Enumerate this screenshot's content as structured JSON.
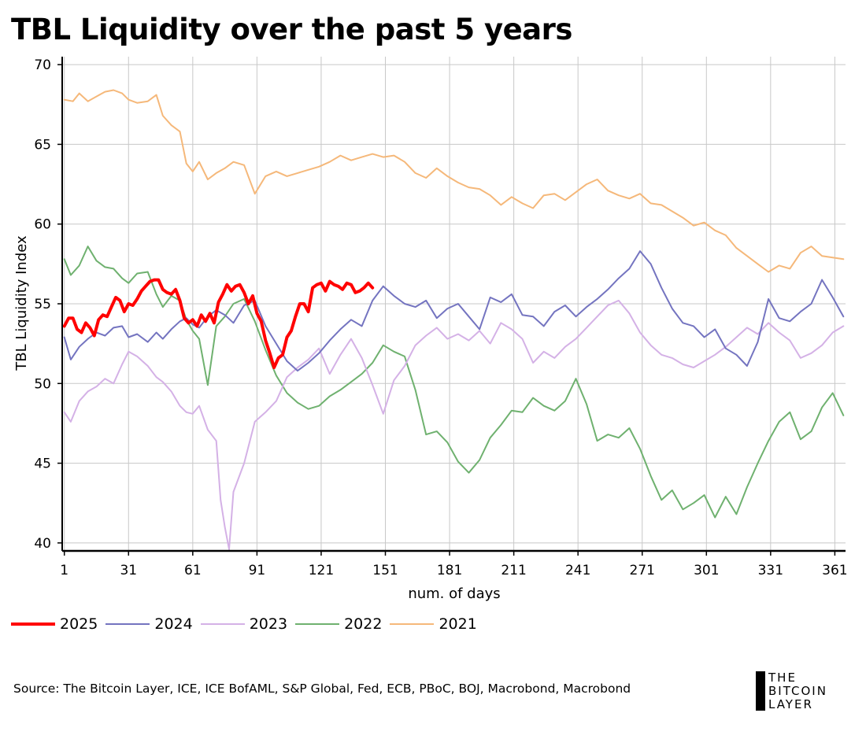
{
  "title": "TBL Liquidity over the past 5 years",
  "source": "Source: The Bitcoin Layer, ICE, ICE BofAML, S&P Global, Fed, ECB, PBoC, BOJ, Macrobond, Macrobond",
  "logo": {
    "line1": "THE",
    "line2": "BITCOIN",
    "line3": "LAYER"
  },
  "chart_data": {
    "type": "line",
    "xlabel": "num. of days",
    "ylabel": "TBL Liquidity Index",
    "xlim": [
      0,
      366
    ],
    "ylim": [
      39.5,
      70.5
    ],
    "x_ticks": [
      1,
      31,
      61,
      91,
      121,
      151,
      181,
      211,
      241,
      271,
      301,
      331,
      361
    ],
    "y_ticks": [
      40,
      45,
      50,
      55,
      60,
      65,
      70
    ],
    "grid": true,
    "legend_position": "bottom-left",
    "series": [
      {
        "name": "2021",
        "color": "#f5b87a",
        "width": 2,
        "x": [
          1,
          5,
          8,
          12,
          16,
          20,
          24,
          28,
          31,
          35,
          40,
          44,
          47,
          51,
          55,
          58,
          61,
          64,
          68,
          72,
          76,
          80,
          85,
          90,
          95,
          100,
          105,
          110,
          115,
          120,
          125,
          130,
          135,
          140,
          145,
          150,
          155,
          160,
          165,
          170,
          175,
          180,
          185,
          190,
          195,
          200,
          205,
          210,
          215,
          220,
          225,
          230,
          235,
          240,
          245,
          250,
          255,
          260,
          265,
          270,
          275,
          280,
          285,
          290,
          295,
          300,
          305,
          310,
          315,
          320,
          325,
          330,
          335,
          340,
          345,
          350,
          355,
          360,
          365
        ],
        "values": [
          67.8,
          67.7,
          68.2,
          67.7,
          68.0,
          68.3,
          68.4,
          68.2,
          67.8,
          67.6,
          67.7,
          68.1,
          66.8,
          66.2,
          65.8,
          63.8,
          63.3,
          63.9,
          62.8,
          63.2,
          63.5,
          63.9,
          63.7,
          61.9,
          63.0,
          63.3,
          63.0,
          63.2,
          63.4,
          63.6,
          63.9,
          64.3,
          64.0,
          64.2,
          64.4,
          64.2,
          64.3,
          63.9,
          63.2,
          62.9,
          63.5,
          63.0,
          62.6,
          62.3,
          62.2,
          61.8,
          61.2,
          61.7,
          61.3,
          61.0,
          61.8,
          61.9,
          61.5,
          62.0,
          62.5,
          62.8,
          62.1,
          61.8,
          61.6,
          61.9,
          61.3,
          61.2,
          60.8,
          60.4,
          59.9,
          60.1,
          59.6,
          59.3,
          58.5,
          58.0,
          57.5,
          57.0,
          57.4,
          57.2,
          58.2,
          58.6,
          58.0,
          57.9,
          57.8
        ]
      },
      {
        "name": "2022",
        "color": "#6fb16f",
        "width": 2,
        "x": [
          1,
          4,
          8,
          12,
          16,
          20,
          24,
          28,
          31,
          35,
          40,
          44,
          47,
          51,
          55,
          58,
          61,
          64,
          68,
          72,
          76,
          80,
          85,
          90,
          95,
          100,
          105,
          110,
          115,
          120,
          125,
          130,
          135,
          140,
          145,
          150,
          155,
          160,
          165,
          170,
          175,
          180,
          185,
          190,
          195,
          200,
          205,
          210,
          215,
          220,
          225,
          230,
          235,
          240,
          245,
          250,
          255,
          260,
          265,
          270,
          275,
          280,
          285,
          290,
          295,
          300,
          305,
          310,
          315,
          320,
          325,
          330,
          335,
          340,
          345,
          350,
          355,
          360,
          365
        ],
        "values": [
          57.8,
          56.8,
          57.4,
          58.6,
          57.7,
          57.3,
          57.2,
          56.6,
          56.3,
          56.9,
          57.0,
          55.6,
          54.8,
          55.5,
          55.2,
          54.0,
          53.3,
          52.8,
          49.9,
          53.6,
          54.2,
          55.0,
          55.3,
          53.9,
          52.1,
          50.5,
          49.4,
          48.8,
          48.4,
          48.6,
          49.2,
          49.6,
          50.1,
          50.6,
          51.3,
          52.4,
          52.0,
          51.7,
          49.6,
          46.8,
          47.0,
          46.3,
          45.1,
          44.4,
          45.2,
          46.6,
          47.4,
          48.3,
          48.2,
          49.1,
          48.6,
          48.3,
          48.9,
          50.3,
          48.7,
          46.4,
          46.8,
          46.6,
          47.2,
          45.9,
          44.2,
          42.7,
          43.3,
          42.1,
          42.5,
          43.0,
          41.6,
          42.9,
          41.8,
          43.5,
          45.0,
          46.4,
          47.6,
          48.2,
          46.5,
          47.0,
          48.5,
          49.4,
          48.0
        ]
      },
      {
        "name": "2023",
        "color": "#d4b1e6",
        "width": 2,
        "x": [
          1,
          4,
          8,
          12,
          16,
          20,
          24,
          28,
          31,
          35,
          40,
          44,
          47,
          51,
          55,
          58,
          61,
          64,
          68,
          72,
          74,
          76,
          78,
          80,
          85,
          90,
          95,
          100,
          105,
          110,
          115,
          120,
          125,
          130,
          135,
          140,
          145,
          150,
          155,
          160,
          165,
          170,
          175,
          180,
          185,
          190,
          195,
          200,
          205,
          210,
          215,
          220,
          225,
          230,
          235,
          240,
          245,
          250,
          255,
          260,
          265,
          270,
          275,
          280,
          285,
          290,
          295,
          300,
          305,
          310,
          315,
          320,
          325,
          330,
          335,
          340,
          345,
          350,
          355,
          360,
          365
        ],
        "values": [
          48.2,
          47.6,
          48.9,
          49.5,
          49.8,
          50.3,
          50.0,
          51.2,
          52.0,
          51.7,
          51.1,
          50.4,
          50.1,
          49.5,
          48.6,
          48.2,
          48.1,
          48.6,
          47.1,
          46.4,
          42.7,
          41.0,
          39.6,
          43.2,
          45.0,
          47.6,
          48.2,
          48.9,
          50.4,
          51.0,
          51.5,
          52.2,
          50.6,
          51.8,
          52.8,
          51.6,
          49.9,
          48.1,
          50.2,
          51.1,
          52.4,
          53.0,
          53.5,
          52.8,
          53.1,
          52.7,
          53.3,
          52.5,
          53.8,
          53.4,
          52.8,
          51.3,
          52.0,
          51.6,
          52.3,
          52.8,
          53.5,
          54.2,
          54.9,
          55.2,
          54.4,
          53.2,
          52.4,
          51.8,
          51.6,
          51.2,
          51.0,
          51.4,
          51.8,
          52.3,
          52.9,
          53.5,
          53.1,
          53.8,
          53.2,
          52.7,
          51.6,
          51.9,
          52.4,
          53.2,
          53.6
        ]
      },
      {
        "name": "2024",
        "color": "#7474c0",
        "width": 2,
        "x": [
          1,
          4,
          8,
          12,
          16,
          20,
          24,
          28,
          31,
          35,
          40,
          44,
          47,
          51,
          55,
          58,
          61,
          64,
          68,
          72,
          76,
          80,
          85,
          90,
          95,
          100,
          105,
          110,
          115,
          120,
          125,
          130,
          135,
          140,
          145,
          150,
          155,
          160,
          165,
          170,
          175,
          180,
          185,
          190,
          195,
          200,
          205,
          210,
          215,
          220,
          225,
          230,
          235,
          240,
          245,
          250,
          255,
          260,
          265,
          270,
          275,
          280,
          285,
          290,
          295,
          300,
          305,
          310,
          315,
          320,
          325,
          330,
          335,
          340,
          345,
          350,
          355,
          360,
          365
        ],
        "values": [
          52.9,
          51.5,
          52.3,
          52.8,
          53.2,
          53.0,
          53.5,
          53.6,
          52.9,
          53.1,
          52.6,
          53.2,
          52.8,
          53.4,
          53.9,
          54.1,
          53.7,
          53.5,
          54.2,
          54.6,
          54.3,
          53.8,
          54.9,
          55.2,
          53.6,
          52.5,
          51.4,
          50.8,
          51.3,
          51.9,
          52.7,
          53.4,
          54.0,
          53.6,
          55.2,
          56.1,
          55.5,
          55.0,
          54.8,
          55.2,
          54.1,
          54.7,
          55.0,
          54.2,
          53.4,
          55.4,
          55.1,
          55.6,
          54.3,
          54.2,
          53.6,
          54.5,
          54.9,
          54.2,
          54.8,
          55.3,
          55.9,
          56.6,
          57.2,
          58.3,
          57.5,
          56.0,
          54.7,
          53.8,
          53.6,
          52.9,
          53.4,
          52.2,
          51.8,
          51.1,
          52.6,
          55.3,
          54.1,
          53.9,
          54.5,
          55.0,
          56.5,
          55.4,
          54.2
        ]
      },
      {
        "name": "2025",
        "color": "#ff0000",
        "width": 4,
        "x": [
          1,
          3,
          5,
          7,
          9,
          11,
          13,
          15,
          17,
          19,
          21,
          23,
          25,
          27,
          29,
          31,
          33,
          35,
          37,
          39,
          41,
          43,
          45,
          47,
          49,
          51,
          53,
          55,
          57,
          59,
          61,
          63,
          65,
          67,
          69,
          71,
          73,
          75,
          77,
          79,
          81,
          83,
          85,
          87,
          89,
          91,
          93,
          95,
          97,
          99,
          101,
          103,
          105,
          107,
          109,
          111,
          113,
          115,
          117,
          119,
          121,
          123,
          125,
          127,
          129,
          131,
          133,
          135,
          137,
          139,
          141,
          143,
          145
        ],
        "values": [
          53.6,
          54.1,
          54.1,
          53.4,
          53.2,
          53.8,
          53.5,
          53.0,
          54.0,
          54.3,
          54.2,
          54.8,
          55.4,
          55.2,
          54.5,
          55.0,
          54.9,
          55.3,
          55.8,
          56.1,
          56.4,
          56.5,
          56.5,
          55.9,
          55.7,
          55.6,
          55.9,
          55.2,
          54.1,
          53.8,
          54.0,
          53.6,
          54.3,
          53.9,
          54.4,
          53.8,
          55.1,
          55.6,
          56.2,
          55.8,
          56.1,
          56.2,
          55.7,
          55.0,
          55.5,
          54.4,
          53.9,
          52.7,
          51.9,
          51.0,
          51.6,
          51.8,
          52.9,
          53.3,
          54.2,
          55.0,
          55.0,
          54.5,
          56.0,
          56.2,
          56.3,
          55.8,
          56.4,
          56.2,
          56.1,
          55.9,
          56.3,
          56.2,
          55.7,
          55.8,
          56.0,
          56.3,
          56.0
        ]
      }
    ]
  }
}
